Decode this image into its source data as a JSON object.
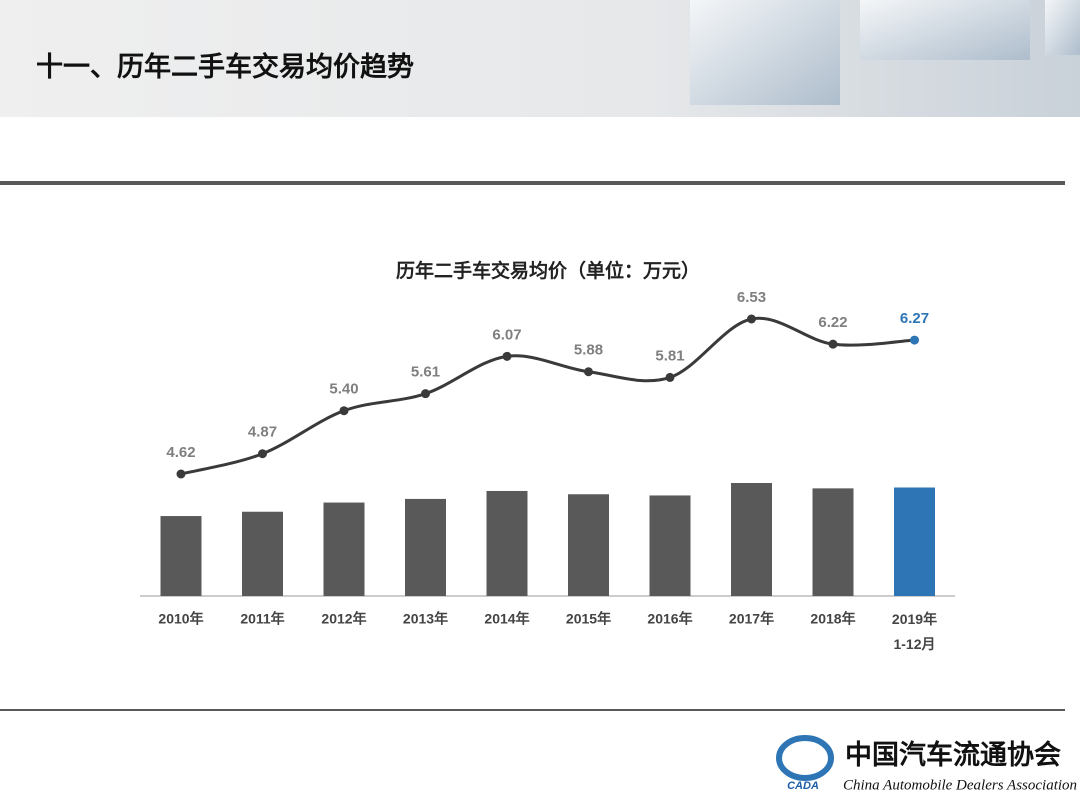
{
  "header": {
    "title": "十一、历年二手车交易均价趋势"
  },
  "chart_data": {
    "type": "bar-line",
    "title": "历年二手车交易均价（单位：万元）",
    "categories": [
      "2010年",
      "2011年",
      "2012年",
      "2013年",
      "2014年",
      "2015年",
      "2016年",
      "2017年",
      "2018年",
      "2019年\n1-12月"
    ],
    "values": [
      4.62,
      4.87,
      5.4,
      5.61,
      6.07,
      5.88,
      5.81,
      6.53,
      6.22,
      6.27
    ],
    "value_labels": [
      "4.62",
      "4.87",
      "5.40",
      "5.61",
      "6.07",
      "5.88",
      "5.81",
      "6.53",
      "6.22",
      "6.27"
    ],
    "bar_colors": [
      "#595959",
      "#595959",
      "#595959",
      "#595959",
      "#595959",
      "#595959",
      "#595959",
      "#595959",
      "#595959",
      "#2e75b6"
    ],
    "label_colors": [
      "#7f7f7f",
      "#7f7f7f",
      "#7f7f7f",
      "#7f7f7f",
      "#7f7f7f",
      "#7f7f7f",
      "#7f7f7f",
      "#7f7f7f",
      "#7f7f7f",
      "#2e75b6"
    ],
    "line_color": "#3a3a3a"
  },
  "footer": {
    "logo_mark": "CADA",
    "logo_cn": "中国汽车流通协会",
    "logo_en": "China Automobile Dealers Association"
  }
}
